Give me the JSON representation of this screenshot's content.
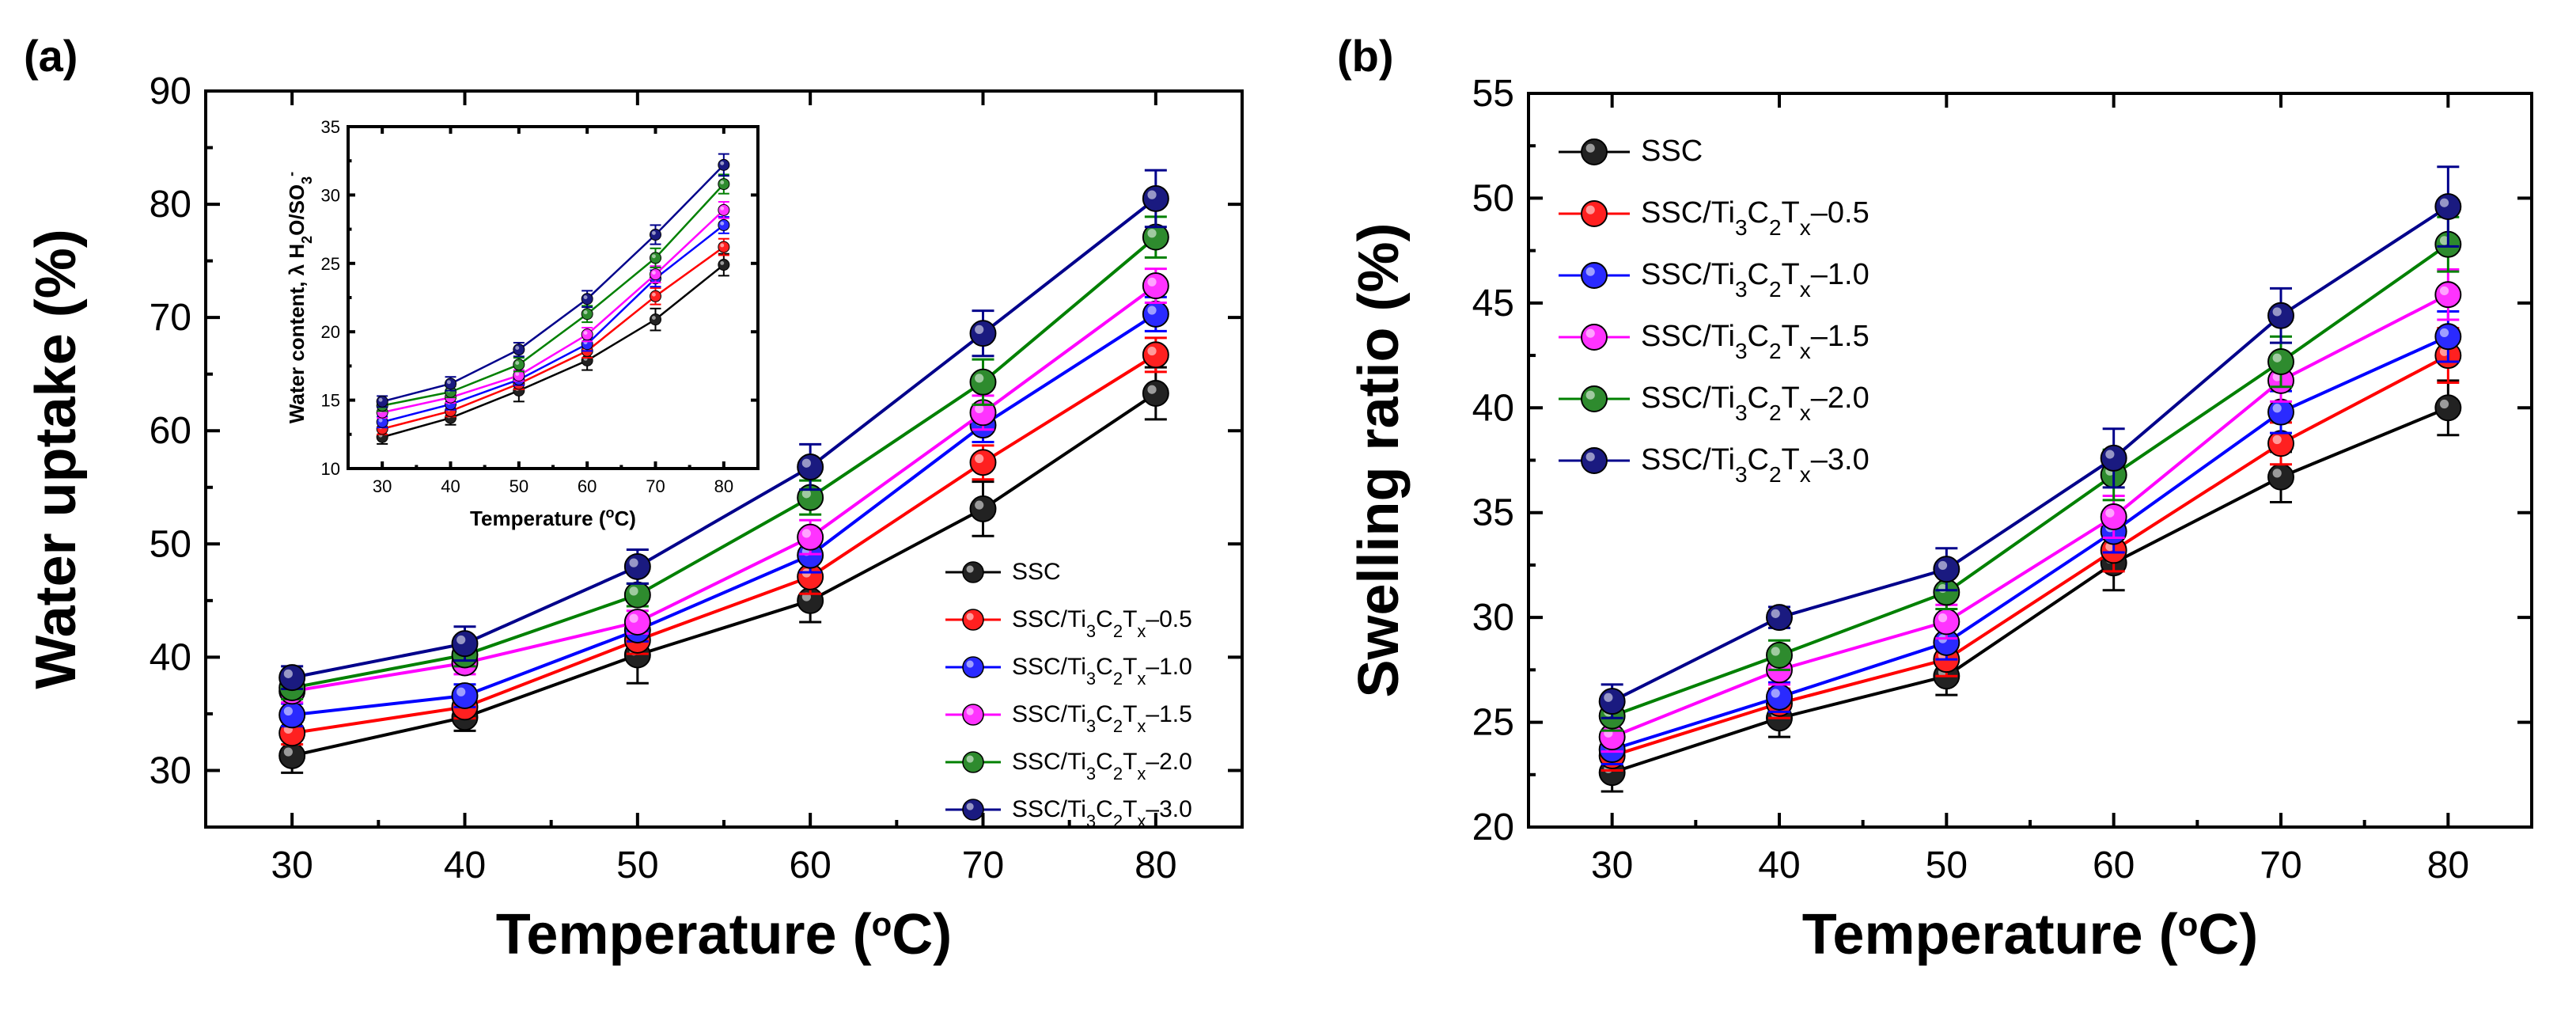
{
  "series_styles": [
    {
      "key": "ssc",
      "fill": "#222222",
      "line": "#000000"
    },
    {
      "key": "t05",
      "fill": "#ff2020",
      "line": "#ff0000"
    },
    {
      "key": "t10",
      "fill": "#2a2aff",
      "line": "#0000ff"
    },
    {
      "key": "t15",
      "fill": "#ff33ff",
      "line": "#ff00ff"
    },
    {
      "key": "t20",
      "fill": "#2e8b2e",
      "line": "#008000"
    },
    {
      "key": "t30",
      "fill": "#1a1a80",
      "line": "#00008b"
    }
  ],
  "chart_data": [
    {
      "id": "a",
      "panel_label": "(a)",
      "type": "line",
      "xlabel": "Temperature (oC)",
      "ylabel": "Water uptake (%)",
      "x": [
        30,
        40,
        50,
        60,
        70,
        80
      ],
      "xlim": [
        25,
        85
      ],
      "ylim": [
        25,
        90
      ],
      "xticks": [
        30,
        40,
        50,
        60,
        70,
        80
      ],
      "yticks": [
        30,
        40,
        50,
        60,
        70,
        80,
        90
      ],
      "legend_position": "bottom-right",
      "series": [
        {
          "name": "SSC",
          "values": [
            31.3,
            34.7,
            40.2,
            45.0,
            53.1,
            63.3
          ],
          "errors": [
            1.5,
            1.2,
            2.5,
            1.9,
            2.4,
            2.3
          ]
        },
        {
          "name": "SSC/Ti3C2Tx–0.5",
          "values": [
            33.3,
            35.6,
            41.5,
            47.1,
            57.2,
            66.7
          ],
          "errors": [
            1.0,
            1.0,
            1.2,
            1.5,
            1.5,
            1.5
          ]
        },
        {
          "name": "SSC/Ti3C2Tx–1.0",
          "values": [
            34.9,
            36.6,
            42.4,
            49.0,
            60.5,
            70.3
          ],
          "errors": [
            1.0,
            1.0,
            1.0,
            1.5,
            1.5,
            1.5
          ]
        },
        {
          "name": "SSC/Ti3C2Tx–1.5",
          "values": [
            37.0,
            39.5,
            43.1,
            50.6,
            61.6,
            72.8
          ],
          "errors": [
            1.0,
            1.0,
            1.0,
            1.5,
            1.5,
            1.5
          ]
        },
        {
          "name": "SSC/Ti3C2Tx–2.0",
          "values": [
            37.3,
            40.2,
            45.5,
            54.1,
            64.3,
            77.1
          ],
          "errors": [
            1.0,
            1.0,
            1.0,
            1.5,
            2.0,
            1.8
          ]
        },
        {
          "name": "SSC/Ti3C2Tx–3.0",
          "values": [
            38.2,
            41.2,
            48.0,
            56.8,
            68.6,
            80.5
          ],
          "errors": [
            1.0,
            1.5,
            1.5,
            2.0,
            2.0,
            2.5
          ]
        }
      ],
      "inset": {
        "xlabel": "Temperature (oC)",
        "ylabel": "Water content, λ H2O/SO3-",
        "x": [
          30,
          40,
          50,
          60,
          70,
          80
        ],
        "xlim": [
          25,
          85
        ],
        "ylim": [
          10,
          35
        ],
        "xticks": [
          30,
          40,
          50,
          60,
          70,
          80
        ],
        "yticks": [
          10,
          15,
          20,
          25,
          30,
          35
        ],
        "series": [
          {
            "name": "SSC",
            "values": [
              12.3,
              13.7,
              15.7,
              17.9,
              20.9,
              24.9
            ],
            "errors": [
              0.5,
              0.5,
              0.8,
              0.7,
              0.8,
              0.8
            ]
          },
          {
            "name": "SSC/Ti3C2Tx–0.5",
            "values": [
              12.9,
              14.2,
              16.2,
              18.6,
              22.6,
              26.2
            ],
            "errors": [
              0.4,
              0.4,
              0.4,
              0.5,
              0.6,
              0.6
            ]
          },
          {
            "name": "SSC/Ti3C2Tx–1.0",
            "values": [
              13.4,
              14.7,
              16.5,
              19.1,
              23.9,
              27.8
            ],
            "errors": [
              0.4,
              0.4,
              0.4,
              0.5,
              0.6,
              0.6
            ]
          },
          {
            "name": "SSC/Ti3C2Tx–1.5",
            "values": [
              14.1,
              15.2,
              16.8,
              19.8,
              24.2,
              28.9
            ],
            "errors": [
              0.4,
              0.4,
              0.4,
              0.5,
              0.6,
              0.6
            ]
          },
          {
            "name": "SSC/Ti3C2Tx–2.0",
            "values": [
              14.6,
              15.6,
              17.6,
              21.3,
              25.4,
              30.8
            ],
            "errors": [
              0.4,
              0.4,
              0.5,
              0.6,
              0.7,
              0.7
            ]
          },
          {
            "name": "SSC/Ti3C2Tx–3.0",
            "values": [
              14.9,
              16.2,
              18.7,
              22.4,
              27.1,
              32.2
            ],
            "errors": [
              0.4,
              0.5,
              0.5,
              0.6,
              0.7,
              0.8
            ]
          }
        ]
      }
    },
    {
      "id": "b",
      "panel_label": "(b)",
      "type": "line",
      "xlabel": "Temperature (oC)",
      "ylabel": "Swelling ratio (%)",
      "x": [
        30,
        40,
        50,
        60,
        70,
        80
      ],
      "xlim": [
        25,
        85
      ],
      "ylim": [
        20,
        55
      ],
      "xticks": [
        30,
        40,
        50,
        60,
        70,
        80
      ],
      "yticks": [
        20,
        25,
        30,
        35,
        40,
        45,
        50,
        55
      ],
      "legend_position": "top-left",
      "series": [
        {
          "name": "SSC",
          "values": [
            22.6,
            25.2,
            27.2,
            32.6,
            36.7,
            40.0
          ],
          "errors": [
            0.9,
            0.9,
            0.9,
            1.3,
            1.2,
            1.3
          ]
        },
        {
          "name": "SSC/Ti3C2Tx–0.5",
          "values": [
            23.4,
            25.9,
            28.0,
            33.2,
            38.3,
            42.5
          ],
          "errors": [
            0.7,
            0.7,
            0.8,
            1.0,
            1.0,
            1.3
          ]
        },
        {
          "name": "SSC/Ti3C2Tx–1.0",
          "values": [
            23.7,
            26.2,
            28.8,
            34.1,
            39.8,
            43.4
          ],
          "errors": [
            0.7,
            0.7,
            0.8,
            1.0,
            1.0,
            1.2
          ]
        },
        {
          "name": "SSC/Ti3C2Tx–1.5",
          "values": [
            24.3,
            27.5,
            29.8,
            34.8,
            41.3,
            45.4
          ],
          "errors": [
            0.7,
            0.7,
            0.8,
            1.0,
            1.0,
            1.2
          ]
        },
        {
          "name": "SSC/Ti3C2Tx–2.0",
          "values": [
            25.3,
            28.2,
            31.2,
            36.8,
            42.2,
            47.8
          ],
          "errors": [
            0.7,
            0.7,
            0.8,
            1.2,
            1.2,
            1.3
          ]
        },
        {
          "name": "SSC/Ti3C2Tx–3.0",
          "values": [
            26.0,
            30.0,
            32.3,
            37.6,
            44.4,
            49.6
          ],
          "errors": [
            0.8,
            0.5,
            1.0,
            1.4,
            1.3,
            1.9
          ]
        }
      ]
    }
  ]
}
